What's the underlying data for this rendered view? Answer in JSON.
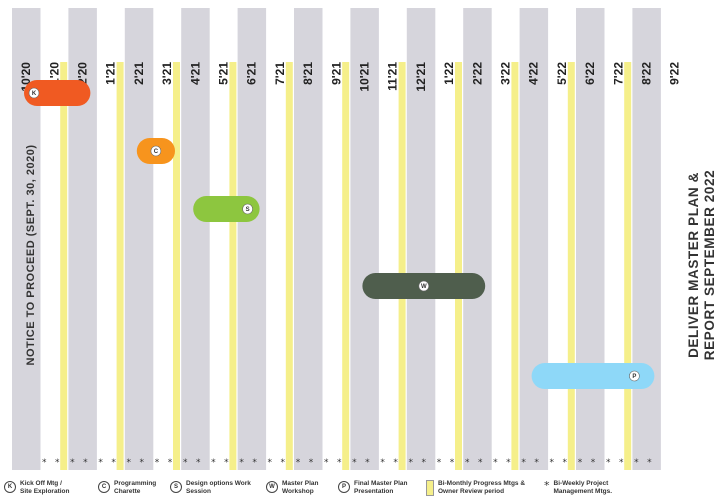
{
  "chart_data": {
    "type": "gantt",
    "months": [
      "10'20",
      "11'20",
      "12'20",
      "1'21",
      "2'21",
      "3'21",
      "4'21",
      "5'21",
      "6'21",
      "7'21",
      "8'21",
      "9'21",
      "10'21",
      "11'21",
      "12'21",
      "1'22",
      "2'22",
      "3'22",
      "4'22",
      "5'22",
      "6'22",
      "7'22",
      "8'22",
      "9'22"
    ],
    "phases": [
      {
        "key": "K",
        "start": "10'20",
        "end": "12'20",
        "color": "#f05a22"
      },
      {
        "key": "C",
        "start": "2'21",
        "end": "3'21",
        "color": "#f7941d"
      },
      {
        "key": "S",
        "start": "4'21",
        "end": "6'21",
        "color": "#8dc63f"
      },
      {
        "key": "W",
        "start": "10'21",
        "end": "2'22",
        "color": "#4f5e4d"
      },
      {
        "key": "P",
        "start": "4'22",
        "end": "8'22",
        "color": "#8ed8f8"
      }
    ],
    "progress_meetings": [
      "11'20",
      "1'21",
      "3'21",
      "5'21",
      "7'21",
      "9'21",
      "11'21",
      "1'22",
      "3'22",
      "5'22",
      "7'22"
    ],
    "left_note": "NOTICE TO PROCEED (SEPT. 30, 2020)",
    "right_note": [
      "DELIVER MASTER PLAN &",
      "REPORT SEPTEMBER 2022"
    ],
    "colors": {
      "column_gray": "#d6d5dc",
      "progress_yellow": "#f5ef8a"
    }
  },
  "legend": [
    {
      "symbol": "K",
      "line1": "Kick Off Mtg /",
      "line2": "Site Exploration"
    },
    {
      "symbol": "C",
      "line1": "Programming",
      "line2": "Charette"
    },
    {
      "symbol": "S",
      "line1": "Design options Work",
      "line2": "Session"
    },
    {
      "symbol": "W",
      "line1": "Master Plan",
      "line2": "Workshop"
    },
    {
      "symbol": "P",
      "line1": "Final Master Plan",
      "line2": "Presentation"
    },
    {
      "symbol": "",
      "line1": "Bi-Monthly Progress Mtgs &",
      "line2": "Owner Review period"
    },
    {
      "symbol": "*",
      "line1": "Bi-Weekly Project",
      "line2": "Management Mtgs."
    }
  ]
}
